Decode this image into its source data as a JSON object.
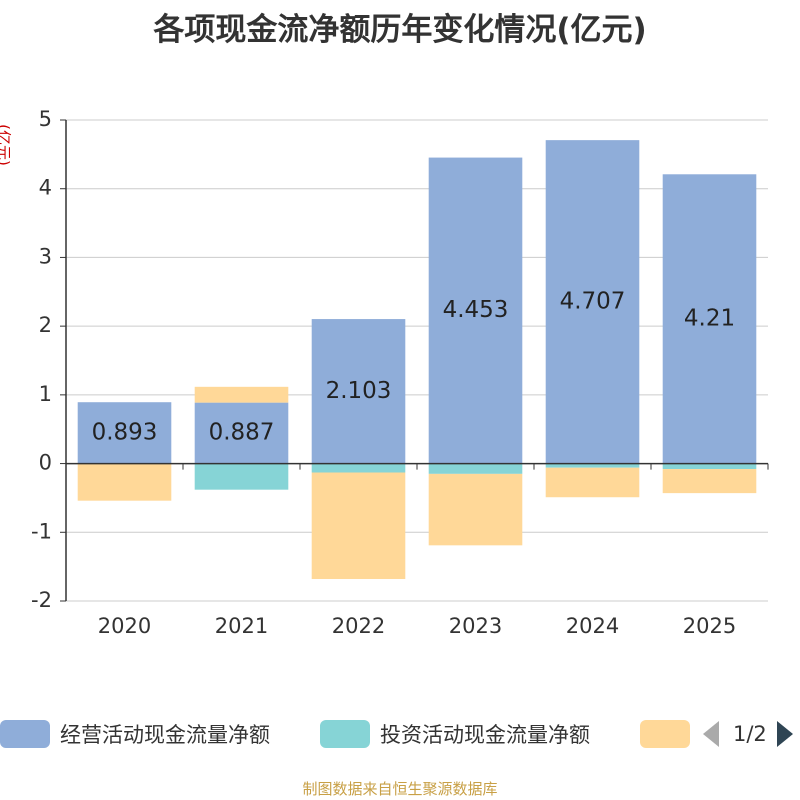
{
  "chart_data": {
    "type": "bar",
    "stacked": true,
    "title": "各项现金流净额历年变化情况(亿元)",
    "ylabel": "(亿元)",
    "xlabel": "",
    "categories": [
      "2020",
      "2021",
      "2022",
      "2023",
      "2024",
      "2025"
    ],
    "ylim": [
      -2,
      5
    ],
    "yticks": [
      -2,
      -1,
      0,
      1,
      2,
      3,
      4,
      5
    ],
    "grid": true,
    "series": [
      {
        "name": "经营活动现金流量净额",
        "color": "#8fadd9",
        "values": [
          0.893,
          0.887,
          2.103,
          4.453,
          4.707,
          4.21
        ],
        "labels": [
          "0.893",
          "0.887",
          "2.103",
          "4.453",
          "4.707",
          "4.21"
        ]
      },
      {
        "name": "投资活动现金流量净额",
        "color": "#86d4d6",
        "values": [
          0,
          -0.38,
          -0.13,
          -0.15,
          -0.06,
          -0.08
        ]
      },
      {
        "name": "",
        "color": "#ffd898",
        "values": [
          -0.54,
          0.23,
          -1.55,
          -1.04,
          -0.43,
          -0.35
        ]
      }
    ],
    "legend_position": "bottom"
  },
  "legend": {
    "pager": "1/2"
  },
  "source": "制图数据来自恒生聚源数据库"
}
